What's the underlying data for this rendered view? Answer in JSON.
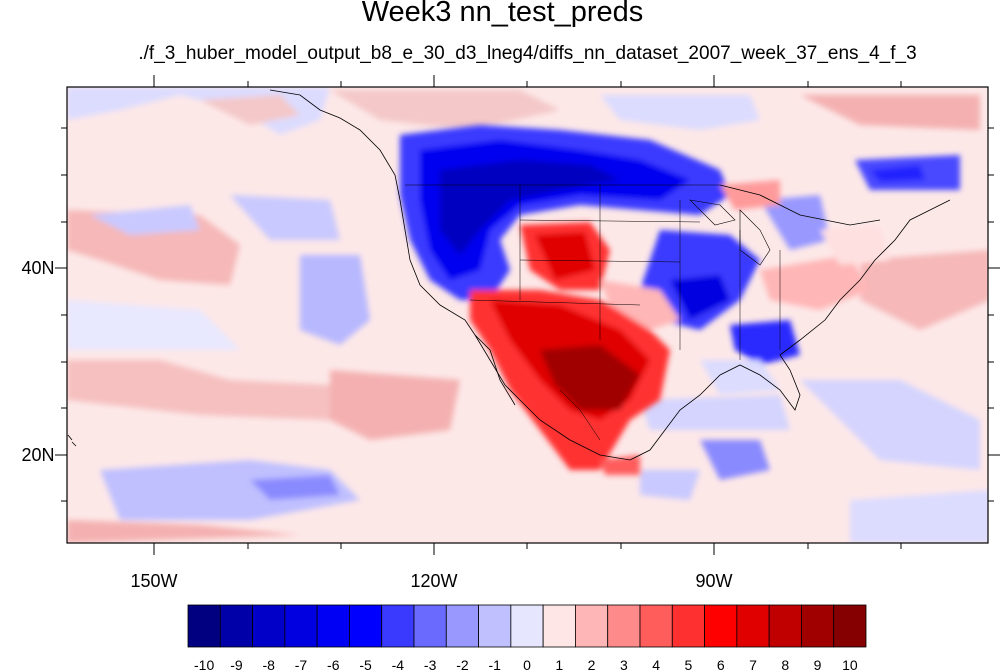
{
  "title": "Week3 nn_test_preds",
  "subtitle": "./f_3_huber_model_output_b8_e_30_d3_lneg4/diffs_nn_dataset_2007_week_37_ens_4_f_3",
  "axes": {
    "lat_labels": [
      "40N",
      "20N"
    ],
    "lon_labels": [
      "150W",
      "120W",
      "90W"
    ]
  },
  "colorbar": {
    "labels": [
      "-10",
      "-9",
      "-8",
      "-7",
      "-6",
      "-5",
      "-4",
      "-3",
      "-2",
      "-1",
      "0",
      "1",
      "2",
      "3",
      "4",
      "5",
      "6",
      "7",
      "8",
      "9",
      "10"
    ],
    "colors": [
      "#000080",
      "#0000a8",
      "#0000c8",
      "#0000e0",
      "#0000f4",
      "#0000ff",
      "#3a3aff",
      "#6a6aff",
      "#9898ff",
      "#c0c0ff",
      "#e6e6ff",
      "#ffe6e6",
      "#ffb6b6",
      "#ff8a8a",
      "#ff5c5c",
      "#ff3030",
      "#ff0000",
      "#e00000",
      "#c00000",
      "#a00000",
      "#850000"
    ]
  }
}
